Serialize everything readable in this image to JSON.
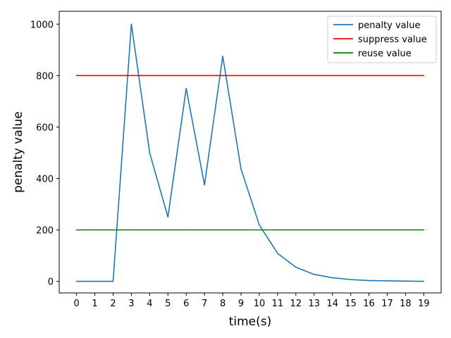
{
  "chart_data": {
    "type": "line",
    "title": "",
    "xlabel": "time(s)",
    "ylabel": "penalty value",
    "x": [
      0,
      1,
      2,
      3,
      4,
      5,
      6,
      7,
      8,
      9,
      10,
      11,
      12,
      13,
      14,
      15,
      16,
      17,
      18,
      19
    ],
    "xlim": [
      -0.95,
      19.95
    ],
    "ylim": [
      -45,
      1050
    ],
    "xticks": [
      0,
      1,
      2,
      3,
      4,
      5,
      6,
      7,
      8,
      9,
      10,
      11,
      12,
      13,
      14,
      15,
      16,
      17,
      18,
      19
    ],
    "yticks": [
      0,
      200,
      400,
      600,
      800,
      1000
    ],
    "grid": false,
    "legend_position": "upper right",
    "series": [
      {
        "name": "penalty value",
        "color": "#1f77b4",
        "values": [
          0,
          0,
          0,
          1000,
          500,
          250,
          750,
          375,
          875,
          437,
          219,
          109,
          55,
          27,
          14,
          7,
          3,
          2,
          1,
          0
        ]
      },
      {
        "name": "suppress value",
        "color": "#ff0000",
        "values": [
          800,
          800,
          800,
          800,
          800,
          800,
          800,
          800,
          800,
          800,
          800,
          800,
          800,
          800,
          800,
          800,
          800,
          800,
          800,
          800
        ]
      },
      {
        "name": "reuse value",
        "color": "#008000",
        "values": [
          200,
          200,
          200,
          200,
          200,
          200,
          200,
          200,
          200,
          200,
          200,
          200,
          200,
          200,
          200,
          200,
          200,
          200,
          200,
          200
        ]
      }
    ]
  }
}
